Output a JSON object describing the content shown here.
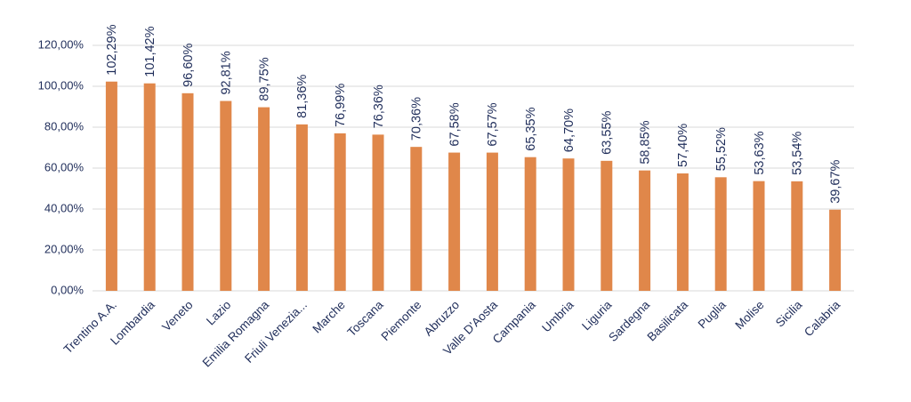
{
  "chart_data": {
    "type": "bar",
    "categories": [
      "Trentino A.A.",
      "Lombardia",
      "Veneto",
      "Lazio",
      "Emilia Romagna",
      "Friuli Venezia...",
      "Marche",
      "Toscana",
      "Piemonte",
      "Abruzzo",
      "Valle D'Aosta",
      "Campania",
      "Umbria",
      "Liguria",
      "Sardegna",
      "Basilicata",
      "Puglia",
      "Molise",
      "Sicilia",
      "Calabria"
    ],
    "values": [
      102.29,
      101.42,
      96.6,
      92.81,
      89.75,
      81.36,
      76.99,
      76.36,
      70.36,
      67.58,
      67.57,
      65.35,
      64.7,
      63.55,
      58.85,
      57.4,
      55.52,
      53.63,
      53.54,
      39.67
    ],
    "value_labels": [
      "102,29%",
      "101,42%",
      "96,60%",
      "92,81%",
      "89,75%",
      "81,36%",
      "76,99%",
      "76,36%",
      "70,36%",
      "67,58%",
      "67,57%",
      "65,35%",
      "64,70%",
      "63,55%",
      "58,85%",
      "57,40%",
      "55,52%",
      "53,63%",
      "53,54%",
      "39,67%"
    ],
    "color": "#e0874a",
    "ylim": [
      0,
      120
    ],
    "yticks": [
      {
        "value": 0,
        "label": "0,00%"
      },
      {
        "value": 20,
        "label": "20,00%"
      },
      {
        "value": 40,
        "label": "40,00%"
      },
      {
        "value": 60,
        "label": "60,00%"
      },
      {
        "value": 80,
        "label": "80,00%"
      },
      {
        "value": 100,
        "label": "100,00%"
      },
      {
        "value": 120,
        "label": "120,00%"
      }
    ],
    "grid": true
  }
}
